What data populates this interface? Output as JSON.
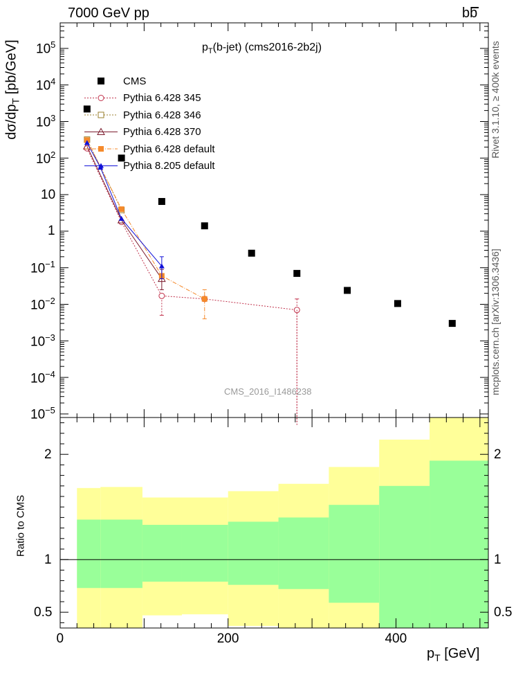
{
  "header": {
    "energy_label": "7000 GeV pp",
    "process_label": "bb",
    "plot_title": "(b-jet) (cms2016-2b2j)"
  },
  "side": {
    "rivet_label": "Rivet 3.1.10, ≥ 400k events",
    "mcplots_label": "mcplots.cern.ch [arXiv:1306.3436]"
  },
  "watermark": "CMS_2016_I1486238",
  "axes": {
    "y_label_top": "dσ/dp",
    "y_label_top_sub": "T",
    "y_label_top_unit": " [pb/GeV]",
    "y_label_ratio": "Ratio to CMS",
    "x_label": "p",
    "x_label_sub": "T",
    "x_label_unit": " [GeV]"
  },
  "chart_data": [
    {
      "type": "scatter",
      "title": "p_T(b-jet) (cms2016-2b2j)",
      "xlabel": "p_T [GeV]",
      "ylabel": "dσ/dp_T [pb/GeV]",
      "xlim": [
        0,
        510
      ],
      "ylim": [
        8e-06,
        500000
      ],
      "yscale": "log",
      "yticks": [
        {
          "v": 1e-05,
          "base": "10",
          "exp": "−5"
        },
        {
          "v": 0.0001,
          "base": "10",
          "exp": "−4"
        },
        {
          "v": 0.001,
          "base": "10",
          "exp": "−3"
        },
        {
          "v": 0.01,
          "base": "10",
          "exp": "−2"
        },
        {
          "v": 0.1,
          "base": "10",
          "exp": "−1"
        },
        {
          "v": 1,
          "base": "1",
          "exp": ""
        },
        {
          "v": 10,
          "base": "10",
          "exp": ""
        },
        {
          "v": 100,
          "base": "10",
          "exp": "2"
        },
        {
          "v": 1000,
          "base": "10",
          "exp": "3"
        },
        {
          "v": 10000,
          "base": "10",
          "exp": "4"
        },
        {
          "v": 100000,
          "base": "10",
          "exp": "5"
        }
      ],
      "series": [
        {
          "name": "CMS",
          "color": "#000000",
          "marker": "square-filled",
          "line": "none",
          "points": [
            [
              32,
              2200
            ],
            [
              73,
              100
            ],
            [
              121,
              6.5
            ],
            [
              172,
              1.4
            ],
            [
              228,
              0.25
            ],
            [
              282,
              0.07
            ],
            [
              342,
              0.024
            ],
            [
              402,
              0.0105
            ],
            [
              467,
              0.003
            ]
          ]
        },
        {
          "name": "Pythia 6.428 345",
          "color": "#c0304a",
          "marker": "circle-open",
          "line": "dotted",
          "points": [
            [
              32,
              185,
              0,
              0
            ],
            [
              73,
              1.8,
              0,
              0
            ],
            [
              121,
              0.017,
              0.005,
              0
            ],
            [
              172,
              0.014,
              0,
              0
            ],
            [
              282,
              0.007,
              5e-06,
              0.014
            ]
          ]
        },
        {
          "name": "Pythia 6.428 346",
          "color": "#9a7f2e",
          "marker": "square-open",
          "line": "dotted",
          "points": [
            [
              32,
              320
            ],
            [
              73,
              3.8
            ]
          ]
        },
        {
          "name": "Pythia 6.428 370",
          "color": "#7a1a2c",
          "marker": "triangle-open",
          "line": "solid",
          "points": [
            [
              32,
              210,
              0,
              0
            ],
            [
              73,
              2.0,
              0,
              0
            ],
            [
              121,
              0.05,
              0.025,
              0.09
            ]
          ]
        },
        {
          "name": "Pythia 6.428 default",
          "color": "#f58a2b",
          "marker": "square-filled",
          "line": "dashdot",
          "points": [
            [
              32,
              310,
              0,
              0
            ],
            [
              73,
              4.0,
              0,
              0
            ],
            [
              121,
              0.06,
              0,
              0
            ],
            [
              172,
              0.014,
              0.004,
              0.025
            ]
          ]
        },
        {
          "name": "Pythia 8.205 default",
          "color": "#1010d8",
          "marker": "triangle-filled",
          "line": "solid",
          "points": [
            [
              32,
              260,
              0,
              0
            ],
            [
              48,
              55,
              0,
              0
            ],
            [
              73,
              2.2,
              0,
              0
            ],
            [
              121,
              0.11,
              0.05,
              0.2
            ]
          ]
        }
      ]
    },
    {
      "type": "area",
      "ylabel": "Ratio to CMS",
      "xlim": [
        0,
        510
      ],
      "ylim": [
        0.35,
        2.35
      ],
      "yticks": [
        0.5,
        1,
        2
      ],
      "xticks": [
        0,
        200,
        400
      ],
      "reference_line": 1,
      "bins": [
        {
          "lo": 20,
          "hi": 48,
          "band1": [
            0.73,
            1.38
          ],
          "band2": [
            0.35,
            1.68
          ]
        },
        {
          "lo": 48,
          "hi": 98,
          "band1": [
            0.73,
            1.38
          ],
          "band2": [
            0.35,
            1.69
          ]
        },
        {
          "lo": 98,
          "hi": 145,
          "band1": [
            0.79,
            1.33
          ],
          "band2": [
            0.47,
            1.59
          ]
        },
        {
          "lo": 145,
          "hi": 200,
          "band1": [
            0.79,
            1.33
          ],
          "band2": [
            0.48,
            1.59
          ]
        },
        {
          "lo": 200,
          "hi": 260,
          "band1": [
            0.76,
            1.36
          ],
          "band2": [
            0.37,
            1.65
          ]
        },
        {
          "lo": 260,
          "hi": 320,
          "band1": [
            0.72,
            1.4
          ],
          "band2": [
            0.35,
            1.72
          ]
        },
        {
          "lo": 320,
          "hi": 380,
          "band1": [
            0.59,
            1.52
          ],
          "band2": [
            0.35,
            1.88
          ]
        },
        {
          "lo": 380,
          "hi": 440,
          "band1": [
            0.35,
            1.7
          ],
          "band2": [
            0.35,
            2.14
          ]
        },
        {
          "lo": 440,
          "hi": 510,
          "band1": [
            0.35,
            1.94
          ],
          "band2": [
            0.35,
            2.35
          ]
        }
      ],
      "band_colors": {
        "inner": "#99ff99",
        "outer": "#ffff99"
      }
    }
  ]
}
